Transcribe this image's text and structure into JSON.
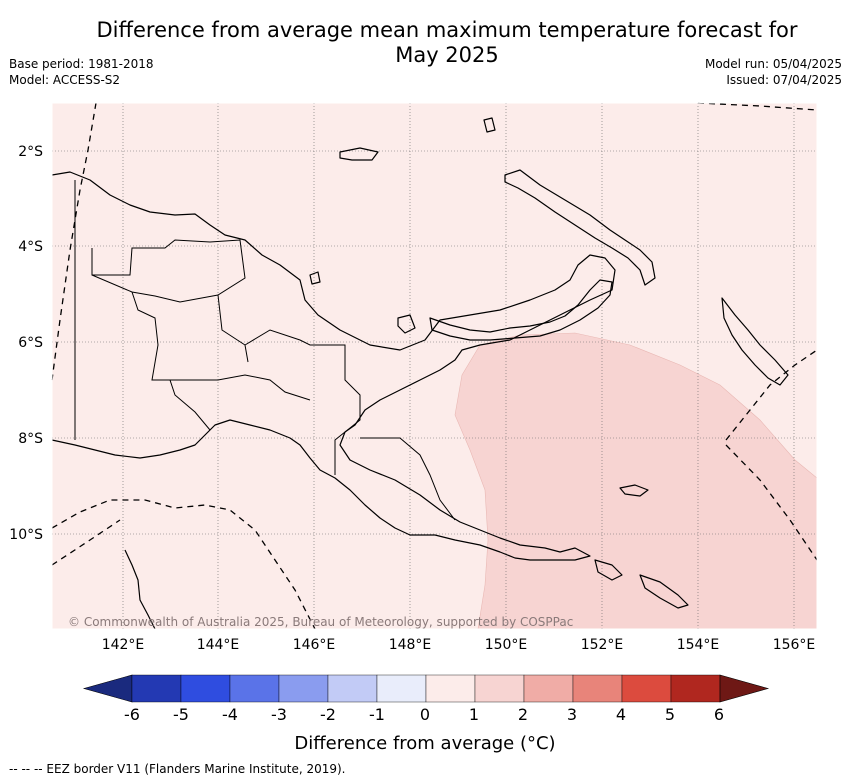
{
  "title_line1": "Difference from average mean maximum temperature forecast for",
  "title_line2": "May 2025",
  "base_period": "Base period: 1981-2018",
  "model": "Model: ACCESS-S2",
  "model_run": "Model run: 05/04/2025",
  "issued": "Issued: 07/04/2025",
  "copyright": "© Commonwealth of Australia 2025, Bureau of Meteorology, supported by COSPPac",
  "lat_labels": [
    "2°S",
    "4°S",
    "6°S",
    "8°S",
    "10°S"
  ],
  "lon_labels": [
    "142°E",
    "144°E",
    "146°E",
    "148°E",
    "150°E",
    "152°E",
    "154°E",
    "156°E"
  ],
  "colorbar": {
    "title": "Difference from average (°C)",
    "ticks": [
      "-6",
      "-5",
      "-4",
      "-3",
      "-2",
      "-1",
      "0",
      "1",
      "2",
      "3",
      "4",
      "5",
      "6"
    ],
    "colors": [
      "#1a2a7e",
      "#2339b3",
      "#2f4de0",
      "#5a73e8",
      "#8a9cef",
      "#c2cbf6",
      "#e9edfb",
      "#fcecea",
      "#f7d4d2",
      "#f0aca6",
      "#e8847a",
      "#dc4b3e",
      "#b0271f",
      "#6e1815"
    ]
  },
  "map_colors": {
    "background": "#fcecea",
    "warm_anomaly": "#f7d4d2"
  },
  "footer": "--  --  -- EEZ border V11 (Flanders Marine Institute, 2019)."
}
